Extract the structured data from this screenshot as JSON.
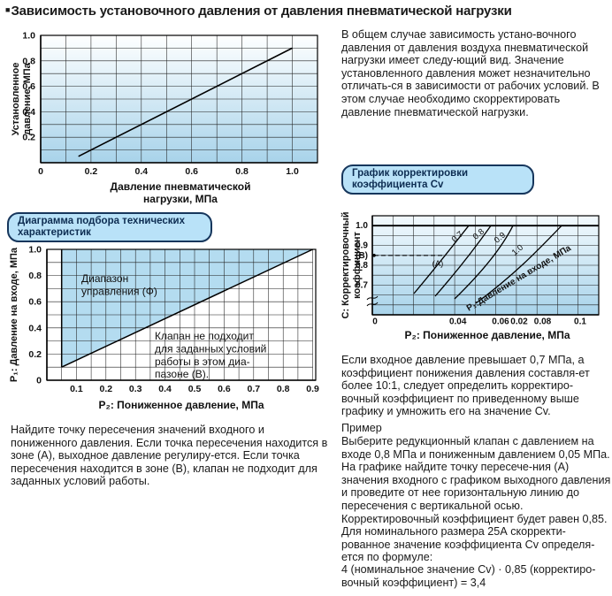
{
  "title": {
    "bullet": "■",
    "text": "Зависимость установочного давления от давления пневматической нагрузки"
  },
  "intro": "В общем случае зависимость устано-вочного давления от давления воздуха пневматической нагрузки имеет следу-ющий вид. Значение установленного давления может незначительно отличать-ся в зависимости от рабочих условий. В этом случае необходимо скорректировать давление пневматической нагрузки.",
  "pills": {
    "cv": {
      "line1": "График корректировки",
      "line2": "коэффициента Cv"
    },
    "selection": {
      "line1": "Диаграмма подбора технических",
      "line2": "характеристик"
    }
  },
  "cv_note": "Если входное давление превышает 0,7 МПа, а коэффициент понижения давления составля-ет более 10:1, следует определить корректиро-вочный коэффициент по приведенному выше графику и умножить его на значение Cv.",
  "example": {
    "header": "Пример",
    "body": "Выберите редукционный клапан с давлением на входе 0,8 МПа и пониженным давлением 0,05 МПа. На графике найдите точку пересече-ния (А) значения входного с графиком выходного давления и проведите от нее горизонтальную линию до пересечения с вертикальной осью. Корректировочный коэффициент будет равен 0,85. Для номинального размера 25А скорректи-рованное значение коэффициента Cv определя-ется по формуле:",
    "formula": "4 (номинальное значение Cv) · 0,85 (корректиро-вочный коэффициент) = 3,4"
  },
  "left_note": "Найдите точку пересечения значений входного и пониженного давления. Если точка пересечения находится в зоне (А), выходное давление регулиру-ется. Если точка пересечения находится в зоне (В), клапан не подходит для заданных условий работы.",
  "colors": {
    "pill_fill": "#b9e2f8",
    "pill_border": "#16365c",
    "pill_text": "#0d2d52",
    "zone_fill": "#b4dcf0",
    "plot_gradient_top": "#feffff",
    "plot_gradient_bottom": "#a8d3ea"
  },
  "chart_data": [
    {
      "id": "set-pressure-vs-load-chart",
      "type": "line",
      "xlabel_line1": "Давление пневматической",
      "xlabel_line2": "нагрузки, МПа",
      "ylabel_line1": "Установленное",
      "ylabel_line2": "давление, МПа",
      "x_ticks": [
        "0",
        "0.2",
        "0.4",
        "0.6",
        "0.8",
        "1.0"
      ],
      "y_ticks": [
        "0.2",
        "0.4",
        "0.6",
        "0.8",
        "1.0"
      ],
      "xlim": [
        0,
        1.1
      ],
      "ylim": [
        0,
        1.0
      ],
      "grid": true,
      "series": [
        {
          "name": "установочное давление",
          "x": [
            0.15,
            1.0
          ],
          "y": [
            0.05,
            0.9
          ]
        }
      ]
    },
    {
      "id": "selection-diagram",
      "type": "line",
      "xlabel": "P₂: Пониженное давление, МПа",
      "ylabel": "P₁: Давление на входе, МПа",
      "x_ticks": [
        "0.1",
        "0.2",
        "0.3",
        "0.4",
        "0.5",
        "0.6",
        "0.7",
        "0.8",
        "0.9"
      ],
      "y_ticks": [
        "0",
        "0.2",
        "0.4",
        "0.6",
        "0.8",
        "1.0"
      ],
      "xlim": [
        0,
        0.91
      ],
      "ylim": [
        0,
        1.0
      ],
      "grid": true,
      "boundary_line": {
        "x": [
          0.05,
          0.9
        ],
        "y": [
          0.1,
          1.0
        ]
      },
      "zone_a_line1": "Диапазон",
      "zone_a_line2": "управления (Ф)",
      "zone_b_lines": [
        "Клапан не подходит",
        "для заданных условий",
        "работы в этом диа-",
        "пазоне (В)."
      ]
    },
    {
      "id": "cv-correction-chart",
      "type": "line",
      "xlabel": "P₂: Пониженное давление, МПа",
      "ylabel_line1": "С: Корректировочный",
      "ylabel_line2": "коэффициент",
      "x_ticks": [
        "0",
        "0.04",
        "0.06",
        "0.02",
        "0.08",
        "0.1"
      ],
      "y_ticks": [
        "1.0",
        "0.9",
        "(B)",
        "0.8",
        "0.7"
      ],
      "grid": true,
      "p1_curve_labels": [
        "0.7",
        "0.8",
        "0.9",
        "1.0"
      ],
      "p1_caption": "P₁:Давление на входе, МПа",
      "intersection_label": "(А)",
      "dashed_level": 0.85,
      "p1_values": [
        0.7,
        0.8,
        0.9,
        1.0
      ]
    }
  ]
}
